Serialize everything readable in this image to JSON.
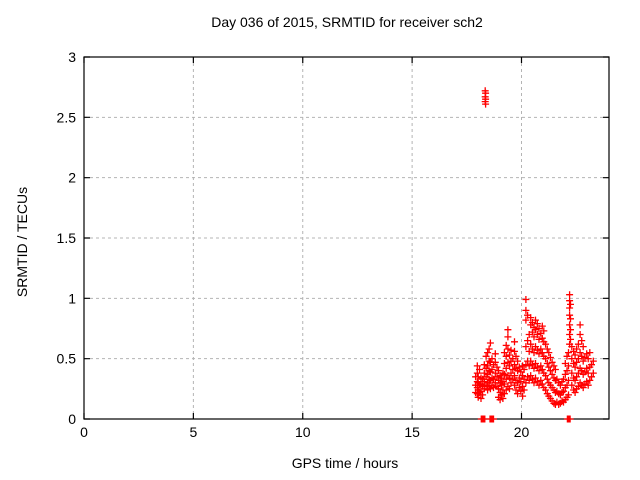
{
  "chart_data": {
    "type": "scatter",
    "title": "Day 036 of 2015, SRMTID for receiver sch2",
    "xlabel": "GPS time / hours",
    "ylabel": "SRMTID / TECUs",
    "xlim": [
      0,
      24
    ],
    "ylim": [
      0,
      3
    ],
    "xticks": [
      0,
      5,
      10,
      15,
      20
    ],
    "xtick_labels": [
      "0",
      "5",
      "10",
      "15",
      "20"
    ],
    "yticks": [
      0,
      0.5,
      1,
      1.5,
      2,
      2.5,
      3
    ],
    "ytick_labels": [
      "0",
      "0.5",
      "1",
      "1.5",
      "2",
      "2.5",
      "3"
    ],
    "grid": true,
    "legend": null,
    "grid_color": "#b4b4b4",
    "border_color": "#000000",
    "series": [
      {
        "name": "srmtid",
        "marker": "plus",
        "color": "#ff0000",
        "streak_format": "[hour, value, value, ...] — one vertical streak of plus markers per entry",
        "streaks": [
          [
            18.34,
            2.63,
            2.67,
            2.72
          ],
          [
            18.36,
            2.61,
            2.65,
            2.7
          ],
          [
            18.16,
            0
          ],
          [
            18.2,
            0
          ],
          [
            18.24,
            0
          ],
          [
            18.28,
            0
          ],
          [
            18.32,
            0
          ],
          [
            18.56,
            0
          ],
          [
            18.6,
            0
          ],
          [
            18.64,
            0
          ],
          [
            18.68,
            0
          ],
          [
            18.72,
            0
          ],
          [
            22.1,
            0
          ],
          [
            22.14,
            0
          ],
          [
            22.18,
            0
          ],
          [
            22.22,
            0
          ],
          [
            17.9,
            0.22,
            0.28,
            0.35
          ],
          [
            17.98,
            0.21,
            0.26,
            0.31,
            0.38,
            0.44
          ],
          [
            18.02,
            0.18,
            0.24,
            0.3,
            0.35
          ],
          [
            18.08,
            0.22,
            0.28,
            0.41
          ],
          [
            18.15,
            0.17,
            0.23,
            0.29,
            0.34
          ],
          [
            18.22,
            0.2,
            0.27,
            0.33
          ],
          [
            18.3,
            0.25,
            0.31,
            0.38,
            0.45
          ],
          [
            18.38,
            0.28,
            0.35,
            0.42,
            0.52
          ],
          [
            18.45,
            0.24,
            0.3,
            0.37,
            0.44,
            0.55
          ],
          [
            18.52,
            0.27,
            0.33,
            0.4,
            0.48,
            0.58
          ],
          [
            18.58,
            0.25,
            0.32,
            0.39,
            0.47,
            0.63
          ],
          [
            18.65,
            0.28,
            0.34,
            0.41,
            0.5
          ],
          [
            18.72,
            0.26,
            0.33,
            0.45
          ],
          [
            18.8,
            0.3,
            0.38,
            0.47,
            0.54
          ],
          [
            18.88,
            0.27,
            0.35,
            0.43
          ],
          [
            18.95,
            0.18,
            0.25,
            0.32,
            0.4
          ],
          [
            19.02,
            0.16,
            0.22,
            0.3,
            0.36
          ],
          [
            19.08,
            0.2,
            0.28,
            0.34
          ],
          [
            19.15,
            0.17,
            0.24,
            0.31,
            0.38
          ],
          [
            19.22,
            0.21,
            0.29,
            0.37,
            0.46,
            0.55
          ],
          [
            19.3,
            0.24,
            0.33,
            0.42,
            0.52,
            0.61
          ],
          [
            19.38,
            0.27,
            0.36,
            0.47,
            0.58,
            0.68,
            0.74
          ],
          [
            19.45,
            0.25,
            0.34,
            0.44,
            0.53
          ],
          [
            19.52,
            0.3,
            0.38,
            0.48,
            0.57
          ],
          [
            19.6,
            0.33,
            0.41,
            0.5
          ],
          [
            19.68,
            0.28,
            0.36,
            0.45,
            0.56,
            0.64
          ],
          [
            19.75,
            0.24,
            0.32,
            0.42,
            0.52
          ],
          [
            19.82,
            0.21,
            0.3,
            0.4,
            0.48
          ],
          [
            19.9,
            0.26,
            0.34,
            0.43
          ],
          [
            19.97,
            0.23,
            0.31,
            0.39
          ],
          [
            20.05,
            0.19,
            0.27,
            0.36,
            0.44
          ],
          [
            20.12,
            0.24,
            0.33,
            0.41
          ],
          [
            20.2,
            0.3,
            0.45,
            0.6,
            0.82,
            0.9,
            0.99
          ],
          [
            20.28,
            0.35,
            0.48,
            0.65,
            0.86
          ],
          [
            20.35,
            0.32,
            0.44,
            0.56,
            0.7
          ],
          [
            20.42,
            0.36,
            0.48,
            0.62,
            0.78,
            0.84
          ],
          [
            20.5,
            0.33,
            0.45,
            0.58,
            0.72,
            0.8
          ],
          [
            20.57,
            0.3,
            0.42,
            0.55,
            0.68,
            0.76
          ],
          [
            20.64,
            0.34,
            0.46,
            0.6,
            0.74,
            0.82
          ],
          [
            20.72,
            0.31,
            0.43,
            0.57,
            0.7,
            0.79
          ],
          [
            20.8,
            0.28,
            0.4,
            0.54,
            0.66,
            0.75
          ],
          [
            20.88,
            0.32,
            0.44,
            0.58,
            0.71
          ],
          [
            20.95,
            0.29,
            0.41,
            0.55,
            0.67,
            0.77
          ],
          [
            21.02,
            0.26,
            0.38,
            0.52,
            0.64,
            0.73
          ],
          [
            21.1,
            0.24,
            0.36,
            0.5,
            0.62
          ],
          [
            21.18,
            0.21,
            0.33,
            0.46,
            0.58
          ],
          [
            21.25,
            0.19,
            0.3,
            0.43,
            0.55
          ],
          [
            21.32,
            0.17,
            0.28,
            0.4,
            0.51
          ],
          [
            21.4,
            0.15,
            0.26,
            0.37,
            0.47
          ],
          [
            21.48,
            0.13,
            0.24,
            0.34,
            0.44
          ],
          [
            21.55,
            0.12,
            0.22,
            0.32,
            0.41
          ],
          [
            21.62,
            0.14,
            0.23,
            0.33
          ],
          [
            21.7,
            0.12,
            0.21,
            0.3
          ],
          [
            21.78,
            0.13,
            0.2,
            0.28
          ],
          [
            21.85,
            0.15,
            0.22,
            0.31
          ],
          [
            21.92,
            0.14,
            0.23,
            0.33
          ],
          [
            22.0,
            0.16,
            0.26,
            0.37,
            0.46
          ],
          [
            22.08,
            0.18,
            0.28,
            0.4,
            0.52
          ],
          [
            22.15,
            0.2,
            0.32,
            0.44,
            0.55
          ],
          [
            22.2,
            0.62,
            0.7,
            0.78,
            0.86,
            0.92,
            0.98,
            1.03
          ],
          [
            22.24,
            0.66,
            0.74,
            0.83,
            0.95
          ],
          [
            22.3,
            0.28,
            0.38,
            0.5,
            0.6
          ],
          [
            22.38,
            0.24,
            0.34,
            0.46,
            0.56
          ],
          [
            22.45,
            0.22,
            0.32,
            0.43,
            0.53
          ],
          [
            22.52,
            0.25,
            0.35,
            0.47,
            0.58
          ],
          [
            22.6,
            0.27,
            0.38,
            0.5,
            0.62
          ],
          [
            22.68,
            0.3,
            0.42,
            0.55,
            0.7,
            0.78
          ],
          [
            22.75,
            0.28,
            0.4,
            0.52,
            0.65
          ],
          [
            22.82,
            0.26,
            0.37,
            0.48,
            0.6
          ],
          [
            22.9,
            0.29,
            0.39,
            0.51
          ],
          [
            22.98,
            0.31,
            0.42,
            0.54
          ],
          [
            23.05,
            0.28,
            0.38,
            0.5
          ],
          [
            23.12,
            0.32,
            0.43,
            0.55
          ],
          [
            23.2,
            0.35,
            0.45
          ],
          [
            23.28,
            0.38,
            0.48
          ]
        ]
      }
    ]
  }
}
